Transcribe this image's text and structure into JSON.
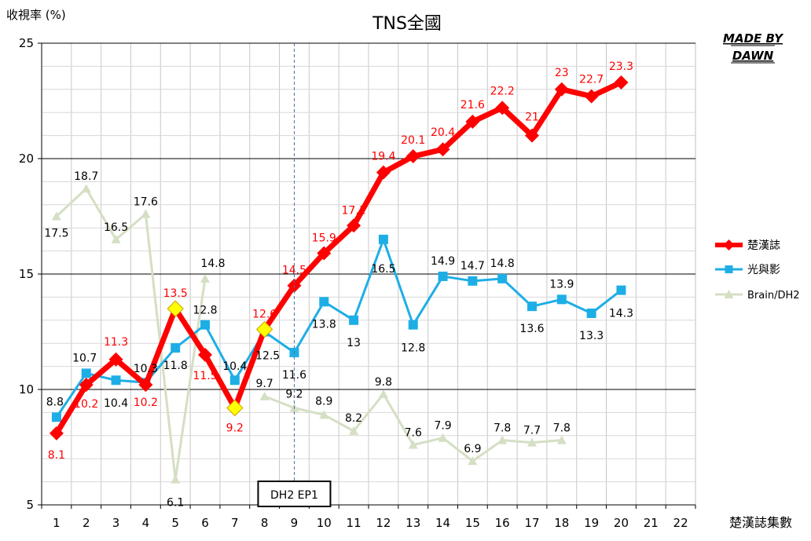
{
  "chart_data": {
    "type": "line",
    "title": "TNS全國",
    "ylabel": "收視率 (%)",
    "xlabel": "楚漢誌集數",
    "ylim": [
      5,
      25
    ],
    "yticks": [
      5,
      10,
      15,
      20,
      25
    ],
    "categories": [
      "1",
      "2",
      "3",
      "4",
      "5",
      "6",
      "7",
      "8",
      "9",
      "10",
      "11",
      "12",
      "13",
      "14",
      "15",
      "16",
      "17",
      "18",
      "19",
      "20",
      "21",
      "22"
    ],
    "grid": true,
    "legend_position": "right",
    "watermark_line1": "MADE BY",
    "watermark_line2": "DAWN",
    "annotation": {
      "text": "DH2 EP1",
      "x": 9
    },
    "series": [
      {
        "name": "楚漢誌",
        "color": "#ff0000",
        "marker": "diamond",
        "x": [
          1,
          2,
          3,
          4,
          5,
          6,
          7,
          8,
          9,
          10,
          11,
          12,
          13,
          14,
          15,
          16,
          17,
          18,
          19,
          20
        ],
        "values": [
          8.1,
          10.2,
          11.3,
          10.2,
          13.5,
          11.5,
          9.2,
          12.6,
          14.5,
          15.9,
          17.1,
          19.4,
          20.1,
          20.4,
          21.6,
          22.2,
          21,
          23,
          22.7,
          23.3
        ],
        "labels": [
          "8.1",
          "10.2",
          "11.3",
          "10.2",
          "13.5",
          "11.5",
          "9.2",
          "12.6",
          "14.5",
          "15.9",
          "17.1",
          "19.4",
          "20.1",
          "20.4",
          "21.6",
          "22.2",
          "21",
          "23",
          "22.7",
          "23.3"
        ],
        "highlight_points": [
          5,
          7,
          8
        ],
        "highlight_color": "#ffff00"
      },
      {
        "name": "光與影",
        "color": "#1eaee6",
        "marker": "square",
        "x": [
          1,
          2,
          3,
          4,
          5,
          6,
          7,
          8,
          9,
          10,
          11,
          12,
          13,
          14,
          15,
          16,
          17,
          18,
          19,
          20
        ],
        "values": [
          8.8,
          10.7,
          10.4,
          10.3,
          11.8,
          12.8,
          10.4,
          12.5,
          11.6,
          13.8,
          13,
          16.5,
          12.8,
          14.9,
          14.7,
          14.8,
          13.6,
          13.9,
          13.3,
          14.3
        ],
        "labels": [
          "8.8",
          "10.7",
          "10.4",
          "10.3",
          "11.8",
          "12.8",
          "10.4",
          "12.5",
          "11.6",
          "13.8",
          "13",
          "16.5",
          "12.8",
          "14.9",
          "14.7",
          "14.8",
          "13.6",
          "13.9",
          "13.3",
          "14.3"
        ]
      },
      {
        "name": "Brain/DH2",
        "color": "#d4dfc4",
        "marker": "triangle",
        "x": [
          1,
          2,
          3,
          4,
          5,
          6
        ],
        "values": [
          17.5,
          18.7,
          16.5,
          17.6,
          6.1,
          14.8
        ],
        "labels": [
          "17.5",
          "18.7",
          "16.5",
          "17.6",
          "6.1",
          "14.8"
        ],
        "x2": [
          8,
          9,
          10,
          11,
          12,
          13,
          14,
          15,
          16,
          17,
          18
        ],
        "values2": [
          9.7,
          9.2,
          8.9,
          8.2,
          9.8,
          7.6,
          7.9,
          6.9,
          7.8,
          7.7,
          7.8
        ],
        "labels2": [
          "9.7",
          "9.2",
          "8.9",
          "8.2",
          "9.8",
          "7.6",
          "7.9",
          "6.9",
          "7.8",
          "7.7",
          "7.8"
        ]
      }
    ]
  }
}
